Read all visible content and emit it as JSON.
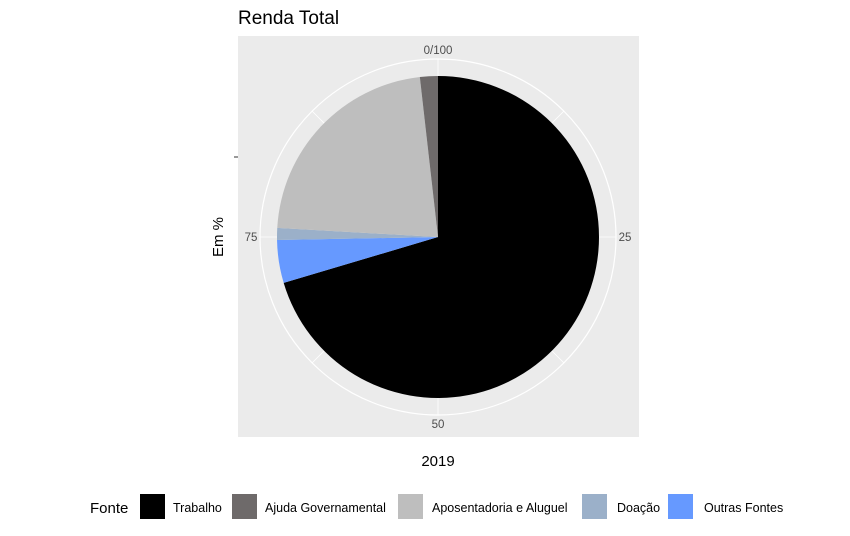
{
  "chart_data": {
    "type": "pie",
    "title": "Renda Total",
    "xlabel": "2019",
    "ylabel": "Em %",
    "theta_ticks": [
      "0/100",
      "25",
      "50",
      "75"
    ],
    "legend_title": "Fonte",
    "legend_position": "bottom",
    "grid": true,
    "slices": [
      {
        "label": "Trabalho",
        "value": 70.4,
        "color": "#000000"
      },
      {
        "label": "Ajuda Governamental",
        "value": 1.8,
        "color": "#6e6a6a"
      },
      {
        "label": "Aposentadoria e Aluguel",
        "value": 22.3,
        "color": "#bebebe"
      },
      {
        "label": "Doação",
        "value": 1.2,
        "color": "#9bb0c9"
      },
      {
        "label": "Outras Fontes",
        "value": 4.3,
        "color": "#6699ff"
      }
    ],
    "slice_order_clockwise_from_top": [
      "Trabalho",
      "Outras Fontes",
      "Doação",
      "Aposentadoria e Aluguel",
      "Ajuda Governamental"
    ]
  }
}
